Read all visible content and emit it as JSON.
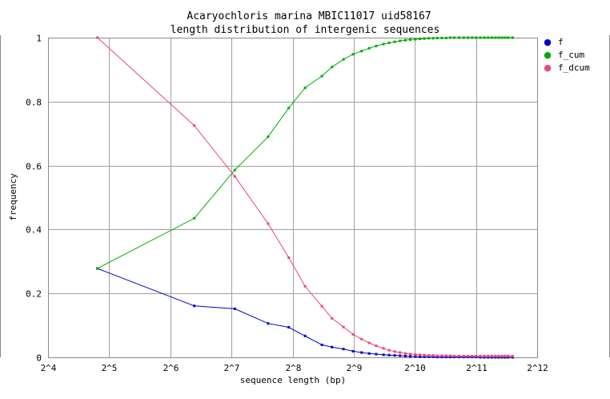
{
  "chart_data": {
    "type": "line",
    "title": "Acaryochloris marina MBIC11017 uid58167",
    "subtitle": "length distribution of intergenic sequences",
    "xlabel": "sequence length (bp)",
    "ylabel": "frequency",
    "xscale": "log2",
    "xlim_exp": [
      4,
      12
    ],
    "ylim": [
      0,
      1
    ],
    "grid": true,
    "legend_position": "right",
    "x_tick_labels": [
      "2^4",
      "2^5",
      "2^6",
      "2^7",
      "2^8",
      "2^9",
      "2^10",
      "2^11",
      "2^12"
    ],
    "y_tick_labels": [
      "0",
      "0.2",
      "0.4",
      "0.6",
      "0.8",
      "1"
    ],
    "y_tick_values": [
      0,
      0.2,
      0.4,
      0.6,
      0.8,
      1
    ],
    "x": [
      28,
      84,
      133,
      194,
      245,
      295,
      357,
      400,
      456,
      508,
      560,
      610,
      660,
      718,
      765,
      815,
      865,
      920,
      972,
      1030,
      1085,
      1140,
      1200,
      1260,
      1320,
      1390,
      1460,
      1530,
      1600,
      1690,
      1780,
      1870,
      1960,
      2050,
      2150,
      2250,
      2350,
      2450,
      2550,
      2650,
      2750,
      2850,
      2950,
      3100
    ],
    "series": [
      {
        "name": "f",
        "color": "#0000cc",
        "values": [
          0.278,
          0.161,
          0.152,
          0.106,
          0.094,
          0.067,
          0.039,
          0.032,
          0.026,
          0.019,
          0.015,
          0.012,
          0.01,
          0.008,
          0.007,
          0.006,
          0.005,
          0.004,
          0.003,
          0.003,
          0.002,
          0.002,
          0.002,
          0.002,
          0.001,
          0.001,
          0.001,
          0.001,
          0.001,
          0.001,
          0.001,
          0.001,
          0.001,
          0.001,
          0.0,
          0.0,
          0.0,
          0.0,
          0.0,
          0.0,
          0.0,
          0.0,
          0.0,
          0.0
        ]
      },
      {
        "name": "f_cum",
        "color": "#00aa00",
        "values": [
          0.278,
          0.435,
          0.586,
          0.69,
          0.78,
          0.843,
          0.88,
          0.908,
          0.932,
          0.948,
          0.958,
          0.967,
          0.974,
          0.98,
          0.984,
          0.987,
          0.99,
          0.992,
          0.994,
          0.995,
          0.996,
          0.997,
          0.998,
          0.998,
          0.999,
          0.999,
          0.999,
          1.0,
          1.0,
          1.0,
          1.0,
          1.0,
          1.0,
          1.0,
          1.0,
          1.0,
          1.0,
          1.0,
          1.0,
          1.0,
          1.0,
          1.0,
          1.0,
          1.0
        ]
      },
      {
        "name": "f_dcum",
        "color": "#ee4477",
        "values": [
          1.0,
          0.725,
          0.566,
          0.418,
          0.312,
          0.222,
          0.16,
          0.122,
          0.095,
          0.072,
          0.057,
          0.045,
          0.036,
          0.028,
          0.022,
          0.018,
          0.015,
          0.012,
          0.01,
          0.009,
          0.008,
          0.007,
          0.006,
          0.006,
          0.005,
          0.005,
          0.005,
          0.005,
          0.004,
          0.004,
          0.004,
          0.004,
          0.004,
          0.004,
          0.004,
          0.004,
          0.004,
          0.004,
          0.004,
          0.004,
          0.004,
          0.004,
          0.004,
          0.004
        ]
      }
    ]
  }
}
